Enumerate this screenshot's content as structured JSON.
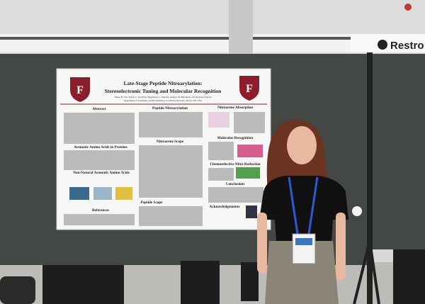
{
  "sign": "Restro",
  "poster": {
    "title_line1": "Late-Stage Peptide Nitroarylation:",
    "title_line2": "Stereoelectronic Tuning and Molecular Recognition",
    "authors": "Jingze M. Cui, Maura C. Dowling, Magdalena C. Delestre, Andrew M. Bersmark, and Nicholas Fantoni",
    "affiliation": "Department of Chemistry and Biochemistry, Fordham University, Bronx, NY, USA",
    "sections": [
      "Abstract",
      "Peptide Nitroarylation",
      "Nitroarene Absorption",
      "Aromatic Amino Acids in Proteins",
      "Nitroarene Scope",
      "Molecular Recognition",
      "Non-Natural Aromatic Amino Acids",
      "Chemoselective Nitro Reduction",
      "Conclusions",
      "Peptide Scope",
      "Acknowledgements",
      "References"
    ]
  }
}
